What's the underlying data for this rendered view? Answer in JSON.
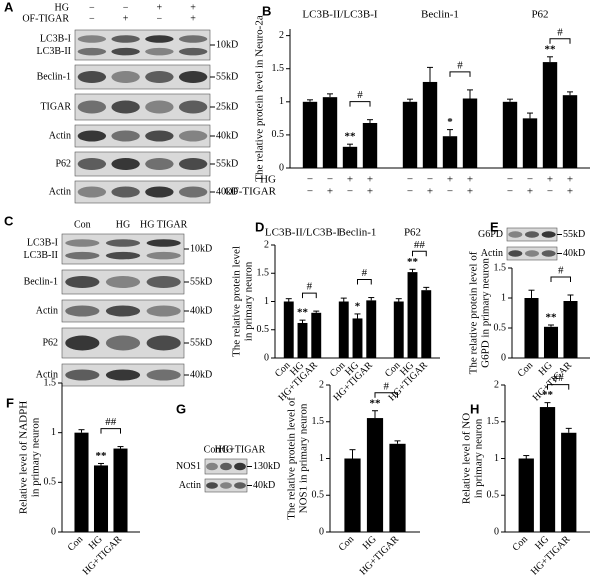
{
  "blots": {
    "A": {
      "panel": "A",
      "conditions": [
        {
          "label": "HG",
          "signs": [
            "−",
            "−",
            "+",
            "+"
          ]
        },
        {
          "label": "OF-TIGAR",
          "signs": [
            "−",
            "+",
            "−",
            "+"
          ]
        }
      ],
      "rows": [
        {
          "labels": [
            "LC3B-I",
            "LC3B-II"
          ],
          "size": "10kD"
        },
        {
          "labels": [
            "Beclin-1"
          ],
          "size": "55kD"
        },
        {
          "labels": [
            "TIGAR"
          ],
          "size": "25kD"
        },
        {
          "labels": [
            "Actin"
          ],
          "size": "40kD"
        },
        {
          "labels": [
            "P62"
          ],
          "size": "55kD"
        },
        {
          "labels": [
            "Actin"
          ],
          "size": "40kD"
        }
      ]
    },
    "C": {
      "panel": "C",
      "lanes": [
        "Con",
        "HG",
        "HG TIGAR"
      ],
      "rows": [
        {
          "labels": [
            "LC3B-I",
            "LC3B-II"
          ],
          "size": "10kD"
        },
        {
          "labels": [
            "Beclin-1"
          ],
          "size": "55kD"
        },
        {
          "labels": [
            "Actin"
          ],
          "size": "40kD"
        },
        {
          "labels": [
            "P62"
          ],
          "size": "55kD"
        },
        {
          "labels": [
            "Actin"
          ],
          "size": "40kD"
        }
      ]
    },
    "E": {
      "rows": [
        {
          "labels": [
            "G6PD"
          ],
          "size": "55kD"
        },
        {
          "labels": [
            "Actin"
          ],
          "size": "40kD"
        }
      ]
    },
    "G": {
      "lanes": [
        "Con",
        "HG",
        "HG+TIGAR"
      ],
      "rows": [
        {
          "labels": [
            "NOS1"
          ],
          "size": "130kD"
        },
        {
          "labels": [
            "Actin"
          ],
          "size": "40kD"
        }
      ]
    }
  },
  "chart_data": [
    {
      "type": "bar",
      "panel": "B",
      "ylabel": "The relative protein level in Neuro-2a",
      "color": "#000000",
      "ylim": [
        0,
        2.1
      ],
      "yticks": [
        0,
        0.5,
        1,
        1.5,
        2
      ],
      "groups": [
        {
          "label": "LC3B-II/LC3B-I",
          "values": [
            1,
            1.07,
            0.32,
            0.68
          ],
          "errors": [
            0.03,
            0.05,
            0.04,
            0.05
          ],
          "significance": [
            null,
            null,
            "**",
            null
          ],
          "bracket": "#"
        },
        {
          "label": "Beclin-1",
          "values": [
            1,
            1.3,
            0.48,
            1.05
          ],
          "errors": [
            0.04,
            0.22,
            0.1,
            0.13
          ],
          "significance": [
            null,
            null,
            "*",
            null
          ],
          "bracket": "#"
        },
        {
          "label": "P62",
          "values": [
            1,
            0.75,
            1.6,
            1.1
          ],
          "errors": [
            0.04,
            0.08,
            0.08,
            0.05
          ],
          "significance": [
            null,
            null,
            "**",
            null
          ],
          "bracket": "#"
        }
      ],
      "conditions": [
        {
          "label": "HG",
          "signs": [
            "−",
            "−",
            "+",
            "+"
          ]
        },
        {
          "label": "OF-TIGAR",
          "signs": [
            "−",
            "+",
            "−",
            "+"
          ]
        }
      ]
    },
    {
      "type": "bar",
      "panel": "D",
      "ylabel": [
        "The relative protein level",
        "in primary neuron"
      ],
      "color": "#000000",
      "ylim": [
        0,
        2
      ],
      "yticks": [
        0,
        0.5,
        1,
        1.5,
        2
      ],
      "categories": [
        "Con",
        "HG",
        "HG+TIGAR"
      ],
      "groups": [
        {
          "label": "LC3B-II/LC3B-I",
          "values": [
            1,
            0.62,
            0.8
          ],
          "errors": [
            0.05,
            0.05,
            0.03
          ],
          "significance": [
            null,
            "**",
            null
          ],
          "bracket": "#"
        },
        {
          "label": "Beclin-1",
          "values": [
            1,
            0.7,
            1.02
          ],
          "errors": [
            0.06,
            0.08,
            0.05
          ],
          "significance": [
            null,
            "*",
            null
          ],
          "bracket": "#"
        },
        {
          "label": "P62",
          "values": [
            1,
            1.52,
            1.2
          ],
          "errors": [
            0.05,
            0.05,
            0.05
          ],
          "significance": [
            null,
            "**",
            null
          ],
          "bracket": "##"
        }
      ]
    },
    {
      "type": "bar",
      "panel": "E",
      "ylabel": [
        "The relative protein level of",
        "G6PD in primary neuron"
      ],
      "color": "#000000",
      "ylim": [
        0,
        1.5
      ],
      "yticks": [
        0,
        0.5,
        1,
        1.5
      ],
      "categories": [
        "Con",
        "HG",
        "HG+TIGAR"
      ],
      "groups": [
        {
          "values": [
            1,
            0.52,
            0.95
          ],
          "errors": [
            0.13,
            0.03,
            0.1
          ],
          "significance": [
            null,
            "**",
            null
          ],
          "bracket": "#"
        }
      ]
    },
    {
      "type": "bar",
      "panel": "F",
      "ylabel": [
        "Relative level of NADPH",
        "in primary neuron"
      ],
      "color": "#000000",
      "ylim": [
        0,
        1.5
      ],
      "yticks": [
        0,
        0.5,
        1,
        1.5
      ],
      "categories": [
        "Con",
        "HG",
        "HG+TIGAR"
      ],
      "groups": [
        {
          "values": [
            1,
            0.67,
            0.84
          ],
          "errors": [
            0.03,
            0.02,
            0.02
          ],
          "significance": [
            null,
            "**",
            null
          ],
          "bracket": "##"
        }
      ]
    },
    {
      "type": "bar",
      "panel": "G",
      "ylabel": [
        "The relative protein level of",
        "NOS1 in primary neuron"
      ],
      "color": "#000000",
      "ylim": [
        0,
        2
      ],
      "yticks": [
        0,
        0.5,
        1,
        1.5,
        2
      ],
      "categories": [
        "Con",
        "HG",
        "HG+TIGAR"
      ],
      "groups": [
        {
          "values": [
            1,
            1.55,
            1.2
          ],
          "errors": [
            0.12,
            0.1,
            0.04
          ],
          "significance": [
            null,
            "**",
            null
          ],
          "bracket": "#"
        }
      ]
    },
    {
      "type": "bar",
      "panel": "H",
      "ylabel": [
        "Relative level of NO",
        "in primary neuron"
      ],
      "color": "#000000",
      "ylim": [
        0,
        2
      ],
      "yticks": [
        0,
        0.5,
        1,
        1.5,
        2
      ],
      "categories": [
        "Con",
        "HG",
        "HG+TIGAR"
      ],
      "groups": [
        {
          "values": [
            1,
            1.7,
            1.35
          ],
          "errors": [
            0.04,
            0.06,
            0.06
          ],
          "significance": [
            null,
            "**",
            null
          ],
          "bracket": "##"
        }
      ]
    }
  ]
}
